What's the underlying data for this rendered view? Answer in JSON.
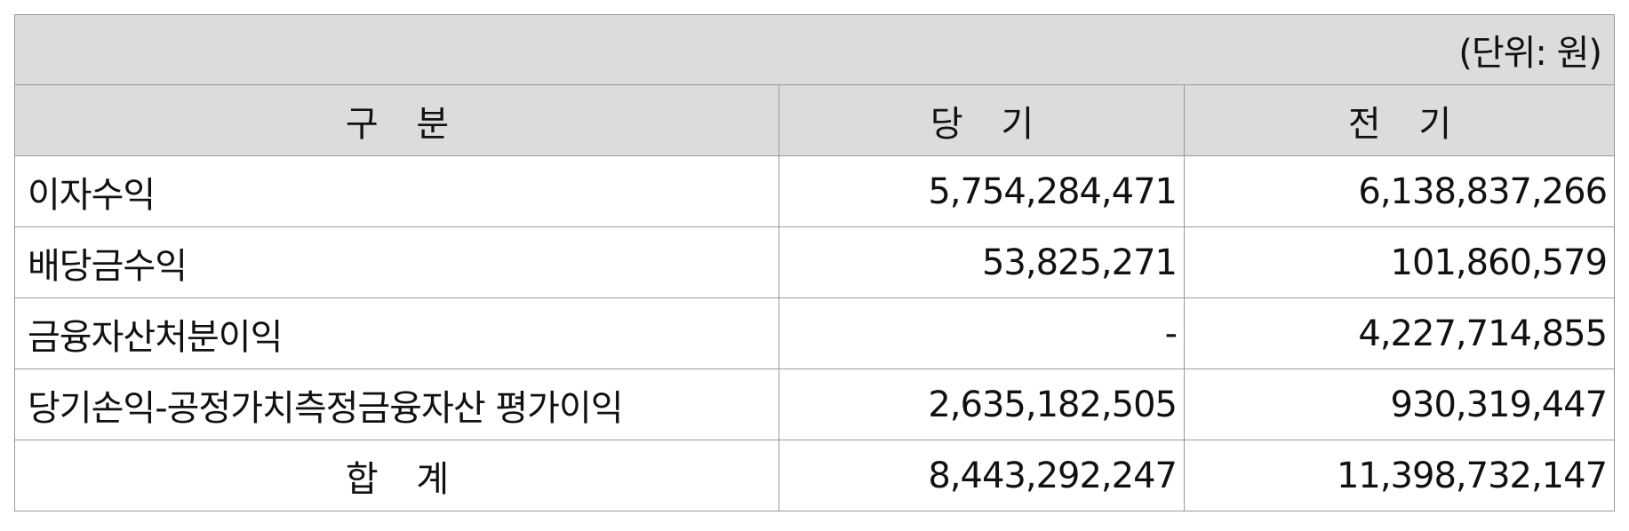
{
  "unit_note": "(단위: 원)",
  "headers": {
    "category": "구 분",
    "current": "당 기",
    "prior": "전 기"
  },
  "rows": [
    {
      "label": "이자수익",
      "current": "5,754,284,471",
      "prior": "6,138,837,266"
    },
    {
      "label": "배당금수익",
      "current": "53,825,271",
      "prior": "101,860,579"
    },
    {
      "label": "금융자산처분이익",
      "current": "-",
      "prior": "4,227,714,855"
    },
    {
      "label": "당기손익-공정가치측정금융자산 평가이익",
      "current": "2,635,182,505",
      "prior": "930,319,447"
    }
  ],
  "total": {
    "label": "합 계",
    "current": "8,443,292,247",
    "prior": "11,398,732,147"
  }
}
